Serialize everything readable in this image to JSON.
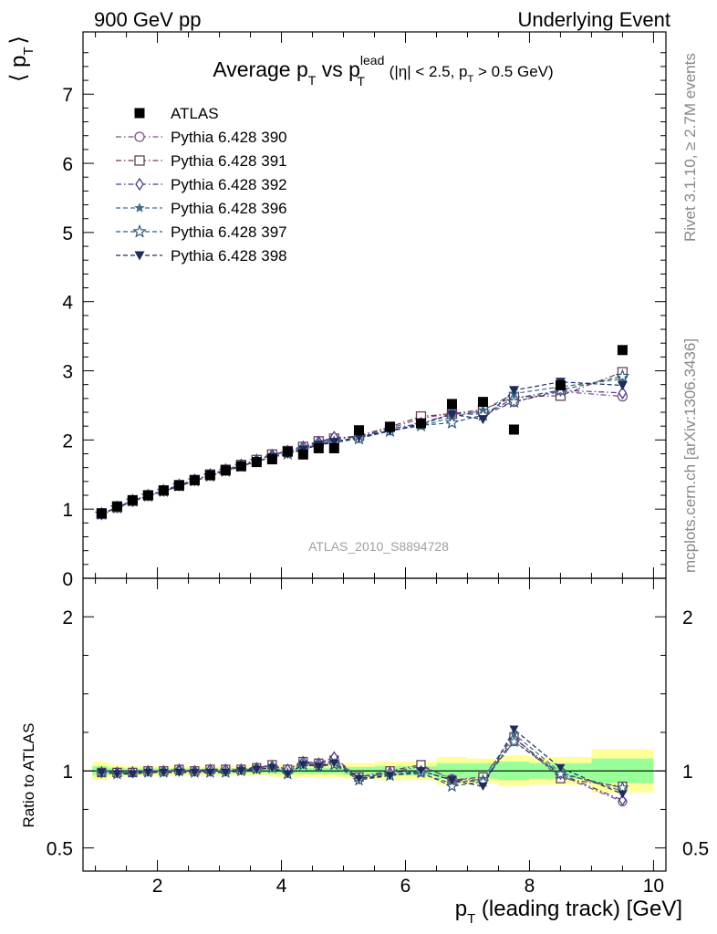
{
  "header": {
    "left": "900 GeV pp",
    "right": "Underlying Event"
  },
  "side_labels": {
    "rivet": "Rivet 3.1.10, ≥ 2.7M events",
    "mcplots": "mcplots.cern.ch [arXiv:1306.3436]"
  },
  "analysis_id": "ATLAS_2010_S8894728",
  "chart_data": [
    {
      "panel": "main",
      "type": "scatter",
      "title": "Average pT vs pT_lead (|η| < 2.5, pT > 0.5 GeV)",
      "title_parts": {
        "main": "Average p",
        "main_sub": "T",
        "vs": " vs p",
        "vs_sup": "lead",
        "vs_sub": "T",
        "cuts_a": " (|η| < 2.5, p",
        "cuts_sub": "T",
        "cuts_b": " > 0.5 GeV)"
      },
      "ylabel": "⟨ pT ⟩",
      "ylabel_parts": {
        "open": "⟨ p",
        "sub": "T",
        "close": "⟩"
      },
      "xlim": [
        0.8,
        10.2
      ],
      "ylim": [
        0,
        7.9
      ],
      "yticks": [
        0,
        1,
        2,
        3,
        4,
        5,
        6,
        7
      ],
      "legend_position": "top-left",
      "x": [
        1.1,
        1.35,
        1.6,
        1.85,
        2.1,
        2.35,
        2.6,
        2.85,
        3.1,
        3.35,
        3.6,
        3.85,
        4.1,
        4.35,
        4.6,
        4.85,
        5.25,
        5.75,
        6.25,
        6.75,
        7.25,
        7.75,
        8.5,
        9.5
      ],
      "series": [
        {
          "name": "ATLAS",
          "color": "#000000",
          "marker": "square-filled",
          "line": "none",
          "values": [
            0.94,
            1.04,
            1.13,
            1.2,
            1.27,
            1.34,
            1.42,
            1.49,
            1.56,
            1.62,
            1.68,
            1.72,
            1.83,
            1.79,
            1.88,
            1.88,
            2.14,
            2.19,
            2.24,
            2.52,
            2.55,
            2.15,
            2.79,
            3.3
          ]
        },
        {
          "name": "Pythia 6.428 390",
          "color": "#7a4f8a",
          "marker": "circle-open",
          "line": "dashdot",
          "values": [
            0.93,
            1.03,
            1.12,
            1.2,
            1.27,
            1.34,
            1.42,
            1.5,
            1.57,
            1.64,
            1.71,
            1.78,
            1.83,
            1.88,
            1.96,
            2.0,
            2.05,
            2.17,
            2.31,
            2.39,
            2.4,
            2.55,
            2.7,
            2.63
          ]
        },
        {
          "name": "Pythia 6.428 391",
          "color": "#6a3d5a",
          "marker": "square-open",
          "line": "dashdot",
          "values": [
            0.93,
            1.03,
            1.12,
            1.2,
            1.27,
            1.35,
            1.42,
            1.5,
            1.57,
            1.64,
            1.71,
            1.79,
            1.84,
            1.9,
            1.98,
            2.02,
            2.06,
            2.19,
            2.34,
            2.38,
            2.44,
            2.62,
            2.64,
            2.98
          ]
        },
        {
          "name": "Pythia 6.428 392",
          "color": "#4a3a8a",
          "marker": "diamond-open",
          "line": "dashdot",
          "values": [
            0.93,
            1.03,
            1.12,
            1.2,
            1.27,
            1.35,
            1.42,
            1.5,
            1.57,
            1.64,
            1.71,
            1.78,
            1.84,
            1.9,
            1.97,
            2.04,
            2.04,
            2.16,
            2.24,
            2.38,
            2.37,
            2.6,
            2.72,
            2.68
          ]
        },
        {
          "name": "Pythia 6.428 396",
          "color": "#3f6f88",
          "marker": "star-filled",
          "line": "dashed",
          "values": [
            0.93,
            1.03,
            1.12,
            1.19,
            1.27,
            1.34,
            1.41,
            1.49,
            1.56,
            1.63,
            1.69,
            1.76,
            1.81,
            1.88,
            1.94,
            1.98,
            2.03,
            2.14,
            2.2,
            2.33,
            2.43,
            2.67,
            2.77,
            2.88
          ]
        },
        {
          "name": "Pythia 6.428 397",
          "color": "#2e5a7a",
          "marker": "star-open",
          "line": "dashed",
          "values": [
            0.93,
            1.02,
            1.12,
            1.19,
            1.26,
            1.34,
            1.41,
            1.48,
            1.55,
            1.62,
            1.69,
            1.75,
            1.8,
            1.86,
            1.93,
            1.96,
            2.02,
            2.13,
            2.21,
            2.25,
            2.36,
            2.55,
            2.72,
            2.92
          ]
        },
        {
          "name": "Pythia 6.428 398",
          "color": "#1c2d5a",
          "marker": "triangle-down-filled",
          "line": "dashed",
          "values": [
            0.93,
            1.02,
            1.11,
            1.19,
            1.26,
            1.33,
            1.41,
            1.48,
            1.55,
            1.62,
            1.69,
            1.75,
            1.8,
            1.86,
            1.93,
            1.97,
            2.04,
            2.13,
            2.23,
            2.37,
            2.3,
            2.72,
            2.84,
            2.79
          ]
        }
      ]
    },
    {
      "panel": "ratio",
      "type": "line",
      "ylabel": "Ratio to ATLAS",
      "xlabel": "pT (leading track) [GeV]",
      "xlabel_parts": {
        "pre": "p",
        "sub": "T",
        "post": " (leading track) [GeV]"
      },
      "xlim": [
        0.8,
        10.2
      ],
      "ylim": [
        0.35,
        2.25
      ],
      "yticks": [
        0.5,
        1,
        2
      ],
      "xticks": [
        2,
        4,
        6,
        8,
        10
      ],
      "reference_line": 1,
      "band_colors": {
        "inner": "#99ff99",
        "outer": "#ffff99"
      },
      "bands": [
        {
          "x0": 0.95,
          "x1": 1.2,
          "inner": 0.03,
          "outer": 0.06
        },
        {
          "x0": 1.2,
          "x1": 1.47,
          "inner": 0.02,
          "outer": 0.04
        },
        {
          "x0": 1.47,
          "x1": 3.8,
          "inner": 0.015,
          "outer": 0.03
        },
        {
          "x0": 3.8,
          "x1": 5.0,
          "inner": 0.02,
          "outer": 0.04
        },
        {
          "x0": 5.0,
          "x1": 5.5,
          "inner": 0.025,
          "outer": 0.05
        },
        {
          "x0": 5.5,
          "x1": 6.5,
          "inner": 0.03,
          "outer": 0.06
        },
        {
          "x0": 6.5,
          "x1": 7.0,
          "inner": 0.05,
          "outer": 0.09
        },
        {
          "x0": 7.0,
          "x1": 7.5,
          "inner": 0.05,
          "outer": 0.08
        },
        {
          "x0": 7.5,
          "x1": 8.0,
          "inner": 0.06,
          "outer": 0.1
        },
        {
          "x0": 8.0,
          "x1": 9.0,
          "inner": 0.05,
          "outer": 0.09
        },
        {
          "x0": 9.0,
          "x1": 10.0,
          "inner": 0.08,
          "outer": 0.14
        }
      ],
      "x": [
        1.1,
        1.35,
        1.6,
        1.85,
        2.1,
        2.35,
        2.6,
        2.85,
        3.1,
        3.35,
        3.6,
        3.85,
        4.1,
        4.35,
        4.6,
        4.85,
        5.25,
        5.75,
        6.25,
        6.75,
        7.25,
        7.75,
        8.5,
        9.5
      ],
      "series": [
        {
          "name": "Pythia 6.428 390",
          "values": [
            0.99,
            0.99,
            0.99,
            1.0,
            1.0,
            1.0,
            1.0,
            1.01,
            1.01,
            1.01,
            1.02,
            1.03,
            1.0,
            1.05,
            1.04,
            1.06,
            0.96,
            0.99,
            1.03,
            0.95,
            0.94,
            1.19,
            0.97,
            0.8
          ]
        },
        {
          "name": "Pythia 6.428 391",
          "values": [
            0.99,
            0.99,
            0.99,
            1.0,
            1.0,
            1.01,
            1.0,
            1.01,
            1.01,
            1.01,
            1.02,
            1.04,
            1.01,
            1.06,
            1.05,
            1.07,
            0.96,
            1.0,
            1.04,
            0.94,
            0.96,
            1.22,
            0.95,
            0.9
          ]
        },
        {
          "name": "Pythia 6.428 392",
          "values": [
            0.99,
            0.99,
            0.99,
            1.0,
            1.0,
            1.01,
            1.0,
            1.01,
            1.01,
            1.01,
            1.02,
            1.03,
            1.01,
            1.06,
            1.05,
            1.09,
            0.95,
            0.99,
            1.0,
            0.94,
            0.93,
            1.21,
            0.98,
            0.81
          ]
        },
        {
          "name": "Pythia 6.428 396",
          "values": [
            0.99,
            0.99,
            0.99,
            0.99,
            1.0,
            1.0,
            0.99,
            1.0,
            1.0,
            1.01,
            1.01,
            1.02,
            0.99,
            1.05,
            1.03,
            1.05,
            0.95,
            0.98,
            0.98,
            0.92,
            0.95,
            1.24,
            0.99,
            0.87
          ]
        },
        {
          "name": "Pythia 6.428 397",
          "values": [
            0.99,
            0.98,
            0.99,
            0.99,
            0.99,
            1.0,
            0.99,
            0.99,
            0.99,
            1.0,
            1.01,
            1.02,
            0.98,
            1.04,
            1.03,
            1.04,
            0.94,
            0.97,
            0.99,
            0.9,
            0.93,
            1.19,
            0.98,
            0.89
          ]
        },
        {
          "name": "Pythia 6.428 398",
          "values": [
            0.99,
            0.98,
            0.98,
            0.99,
            0.99,
            0.99,
            0.99,
            0.99,
            0.99,
            1.0,
            1.01,
            1.02,
            0.98,
            1.04,
            1.03,
            1.05,
            0.95,
            0.97,
            1.0,
            0.94,
            0.9,
            1.27,
            1.02,
            0.85
          ]
        }
      ]
    }
  ]
}
